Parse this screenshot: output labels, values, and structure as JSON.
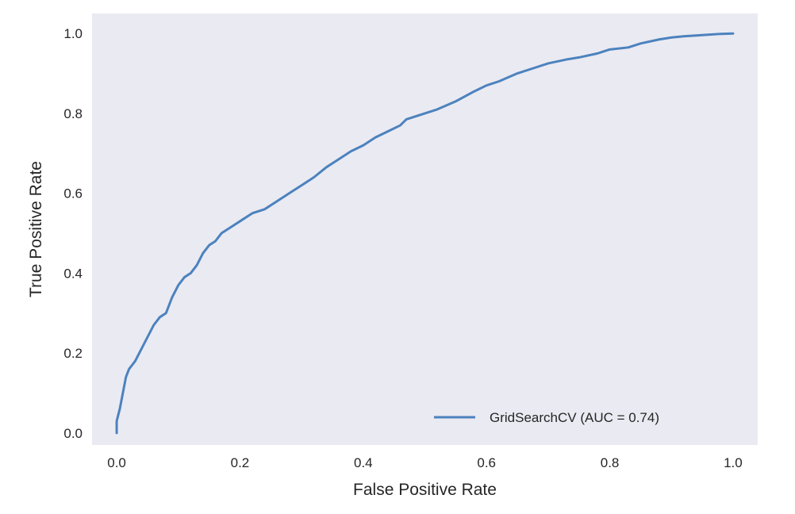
{
  "chart_data": {
    "type": "line",
    "title": "",
    "xlabel": "False Positive Rate",
    "ylabel": "True Positive Rate",
    "xlim": [
      -0.04,
      1.04
    ],
    "ylim": [
      -0.03,
      1.05
    ],
    "grid": false,
    "background_color": "#eaeaf2",
    "x_ticks": [
      0.0,
      0.2,
      0.4,
      0.6,
      0.8,
      1.0
    ],
    "x_tick_labels": [
      "0.0",
      "0.2",
      "0.4",
      "0.6",
      "0.8",
      "1.0"
    ],
    "y_ticks": [
      0.0,
      0.2,
      0.4,
      0.6,
      0.8,
      1.0
    ],
    "y_tick_labels": [
      "0.0",
      "0.2",
      "0.4",
      "0.6",
      "0.8",
      "1.0"
    ],
    "legend_position": "lower-right",
    "series": [
      {
        "name": "GridSearchCV (AUC = 0.74)",
        "color": "#4c82be",
        "x": [
          0.0,
          0.0,
          0.005,
          0.01,
          0.015,
          0.02,
          0.025,
          0.03,
          0.04,
          0.05,
          0.06,
          0.07,
          0.08,
          0.09,
          0.1,
          0.11,
          0.12,
          0.13,
          0.14,
          0.15,
          0.16,
          0.17,
          0.18,
          0.19,
          0.2,
          0.22,
          0.24,
          0.26,
          0.28,
          0.3,
          0.32,
          0.34,
          0.36,
          0.38,
          0.4,
          0.42,
          0.44,
          0.46,
          0.47,
          0.5,
          0.52,
          0.55,
          0.58,
          0.6,
          0.62,
          0.65,
          0.68,
          0.7,
          0.73,
          0.75,
          0.78,
          0.8,
          0.83,
          0.85,
          0.88,
          0.9,
          0.92,
          0.95,
          0.98,
          1.0
        ],
        "y": [
          0.0,
          0.03,
          0.06,
          0.1,
          0.14,
          0.16,
          0.17,
          0.18,
          0.21,
          0.24,
          0.27,
          0.29,
          0.3,
          0.34,
          0.37,
          0.39,
          0.4,
          0.42,
          0.45,
          0.47,
          0.48,
          0.5,
          0.51,
          0.52,
          0.53,
          0.55,
          0.56,
          0.58,
          0.6,
          0.62,
          0.64,
          0.665,
          0.685,
          0.705,
          0.72,
          0.74,
          0.755,
          0.77,
          0.785,
          0.8,
          0.81,
          0.83,
          0.855,
          0.87,
          0.88,
          0.9,
          0.915,
          0.925,
          0.935,
          0.94,
          0.95,
          0.96,
          0.965,
          0.975,
          0.985,
          0.99,
          0.993,
          0.996,
          0.999,
          1.0
        ]
      }
    ]
  }
}
